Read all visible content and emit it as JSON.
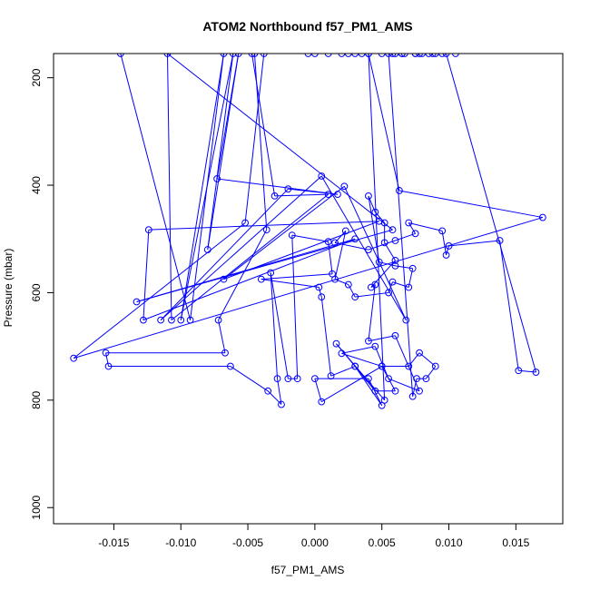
{
  "chart_data": {
    "type": "line",
    "title": "ATOM2 Northbound f57_PM1_AMS",
    "xlabel": "f57_PM1_AMS",
    "ylabel": "Pressure (mbar)",
    "xlim": [
      -0.0195,
      0.0185
    ],
    "ylim": [
      1030,
      155
    ],
    "y_reversed": true,
    "x_ticks": [
      -0.015,
      -0.01,
      -0.005,
      0.0,
      0.005,
      0.01,
      0.015
    ],
    "x_tick_labels": [
      "-0.015",
      "-0.010",
      "-0.005",
      "0.000",
      "0.005",
      "0.010",
      "0.015"
    ],
    "y_ticks": [
      200,
      400,
      600,
      800,
      1000
    ],
    "y_tick_labels": [
      "200",
      "400",
      "600",
      "800",
      "1000"
    ],
    "grid": false,
    "legend": "none",
    "line_color": "#0000ff",
    "marker": "open-circle",
    "series": [
      {
        "points": [
          [
            -0.0145,
            155
          ],
          [
            -0.0093,
            651
          ],
          [
            -0.0068,
            155
          ],
          [
            -0.01,
            651
          ],
          [
            -0.0061,
            155
          ],
          [
            -0.008,
            520
          ],
          [
            -0.0057,
            155
          ],
          [
            -0.0073,
            388
          ],
          [
            0.0017,
            417
          ],
          [
            -0.002,
            407
          ],
          [
            -0.0115,
            651
          ],
          [
            0.0005,
            383
          ],
          [
            0.0068,
            651
          ],
          [
            0.0022,
            402
          ],
          [
            -0.0068,
            575
          ],
          [
            0.0048,
            467
          ],
          [
            -0.0124,
            483
          ],
          [
            -0.0128,
            651
          ],
          [
            0.003,
            500
          ],
          [
            -0.0133,
            617
          ],
          [
            0.0058,
            483
          ],
          [
            -0.011,
            155
          ],
          [
            -0.0107,
            651
          ],
          [
            0.001,
            417
          ],
          [
            -0.003,
            420
          ],
          [
            -0.0047,
            155
          ],
          [
            -0.0038,
            155
          ],
          [
            -0.0052,
            470
          ],
          [
            -0.018,
            722
          ],
          [
            0.017,
            460
          ],
          [
            0.0063,
            410
          ],
          [
            0.004,
            155
          ],
          [
            0.002,
            155
          ],
          [
            -0.0045,
            155
          ],
          [
            -0.0036,
            483
          ],
          [
            -0.0072,
            651
          ],
          [
            -0.0067,
            712
          ],
          [
            -0.0156,
            712
          ],
          [
            -0.0154,
            737
          ],
          [
            -0.0063,
            737
          ],
          [
            -0.0035,
            783
          ],
          [
            -0.0025,
            808
          ],
          [
            -0.0028,
            760
          ],
          [
            -0.0033,
            563
          ],
          [
            -0.002,
            760
          ],
          [
            -0.0013,
            760
          ],
          [
            -0.0017,
            493
          ],
          [
            0.001,
            505
          ],
          [
            0.0013,
            565
          ],
          [
            -0.004,
            575
          ],
          [
            0.0003,
            590
          ],
          [
            0.0005,
            608
          ],
          [
            0.0012,
            755
          ],
          [
            0.003,
            737
          ],
          [
            0.0045,
            783
          ],
          [
            0.006,
            783
          ],
          [
            0.005,
            737
          ],
          [
            0.007,
            737
          ],
          [
            0.0078,
            712
          ],
          [
            0.009,
            737
          ],
          [
            0.0083,
            760
          ],
          [
            0.0076,
            760
          ],
          [
            0.0073,
            793
          ],
          [
            0.0055,
            155
          ],
          [
            0.005,
            155
          ],
          [
            0.0058,
            155
          ],
          [
            0.0067,
            155
          ],
          [
            0.006,
            155
          ],
          [
            0.0065,
            155
          ],
          [
            0.0075,
            155
          ],
          [
            0.0085,
            155
          ],
          [
            0.0078,
            155
          ],
          [
            0.0095,
            155
          ],
          [
            0.0105,
            155
          ],
          [
            0.009,
            155
          ],
          [
            0.0088,
            155
          ],
          [
            0.0035,
            155
          ],
          [
            0.003,
            155
          ],
          [
            0.0025,
            155
          ],
          [
            0.001,
            155
          ],
          [
            -0.0005,
            155
          ],
          [
            0.0,
            155
          ],
          [
            0.004,
            155
          ],
          [
            0.0052,
            800
          ],
          [
            0.0016,
            695
          ],
          [
            0.003,
            737
          ],
          [
            0.005,
            810
          ],
          [
            0.004,
            760
          ],
          [
            0.0,
            760
          ],
          [
            0.0005,
            803
          ],
          [
            0.005,
            737
          ],
          [
            0.002,
            713
          ],
          [
            0.0045,
            700
          ],
          [
            0.0055,
            760
          ],
          [
            0.0078,
            783
          ],
          [
            0.006,
            680
          ],
          [
            0.004,
            690
          ],
          [
            0.0045,
            585
          ],
          [
            0.0042,
            590
          ],
          [
            0.006,
            540
          ],
          [
            0.0052,
            507
          ],
          [
            0.0052,
            470
          ],
          [
            0.0045,
            450
          ],
          [
            0.004,
            420
          ],
          [
            0.0048,
            543
          ],
          [
            0.006,
            550
          ],
          [
            0.0073,
            555
          ],
          [
            0.007,
            590
          ],
          [
            0.0058,
            580
          ],
          [
            0.0055,
            600
          ],
          [
            0.003,
            608
          ],
          [
            0.0025,
            585
          ],
          [
            0.0015,
            575
          ],
          [
            0.0023,
            485
          ],
          [
            0.0015,
            507
          ],
          [
            0.004,
            520
          ],
          [
            0.006,
            503
          ],
          [
            0.0075,
            490
          ],
          [
            0.007,
            470
          ],
          [
            0.0095,
            485
          ],
          [
            0.0098,
            530
          ],
          [
            0.01,
            513
          ],
          [
            0.0138,
            503
          ],
          [
            0.0152,
            745
          ],
          [
            0.0165,
            748
          ],
          [
            0.0098,
            155
          ],
          [
            0.008,
            155
          ],
          [
            0.0075,
            155
          ],
          [
            0.0065,
            155
          ]
        ]
      }
    ]
  }
}
